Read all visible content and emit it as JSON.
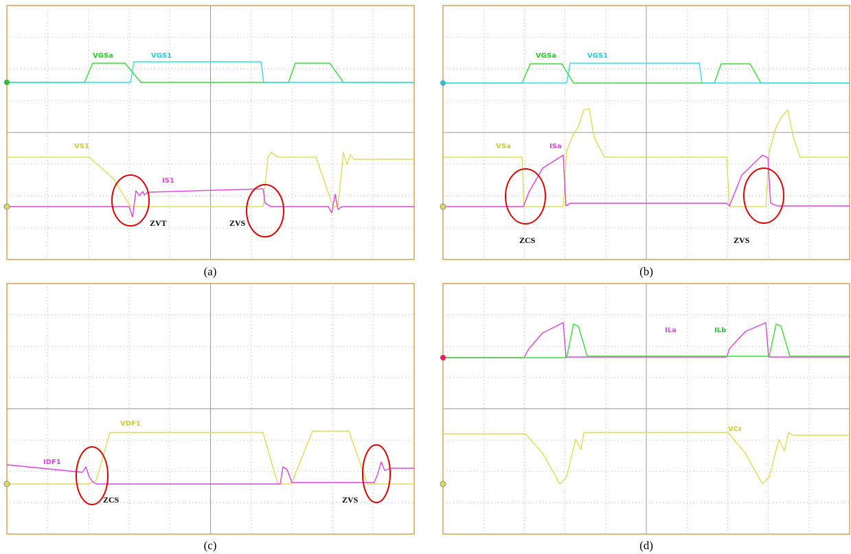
{
  "panels": [
    {
      "caption": "(a)",
      "trace_labels": [
        "VGSa",
        "VGS1",
        "VS1",
        "IS1"
      ],
      "annotations": [
        "ZVT",
        "ZVS"
      ]
    },
    {
      "caption": "(b)",
      "trace_labels": [
        "VGSa",
        "VGS1",
        "VSa",
        "ISa"
      ],
      "annotations": [
        "ZCS",
        "ZVS"
      ]
    },
    {
      "caption": "(c)",
      "trace_labels": [
        "VDF1",
        "IDF1"
      ],
      "annotations": [
        "ZCS",
        "ZVS"
      ]
    },
    {
      "caption": "(d)",
      "trace_labels": [
        "ILa",
        "ILb",
        "VCr"
      ],
      "annotations": []
    }
  ]
}
